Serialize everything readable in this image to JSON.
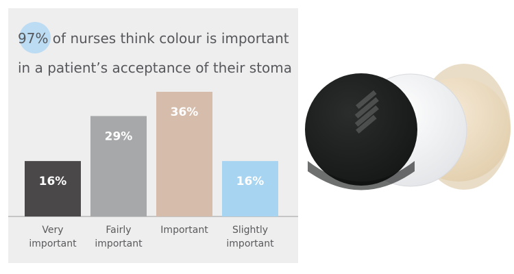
{
  "title": {
    "highlight": "97%",
    "line1_rest": " of nurses think colour is important",
    "line2": "in a patient’s acceptance of their stoma"
  },
  "colors": {
    "panel": "#efeeef",
    "highlight_circle": "#bcdcf3",
    "bars": [
      "#4b4849",
      "#a7a8a9",
      "#d6bcab",
      "#a6d4f1"
    ],
    "label_text": "#ffffff",
    "category_text": "#58595b"
  },
  "chart_data": {
    "type": "bar",
    "categories": [
      [
        "Very",
        "important"
      ],
      [
        "Fairly",
        "important"
      ],
      [
        "Important"
      ],
      [
        "Slightly",
        "important"
      ]
    ],
    "values": [
      16,
      29,
      36,
      16
    ],
    "data_labels": [
      "16%",
      "29%",
      "36%",
      "16%"
    ],
    "ylim": [
      0,
      36
    ],
    "grid": false
  },
  "photo": {
    "icon": "stoma-bag-colour-samples",
    "swatches": [
      "#1f2121",
      "#f5f6f7",
      "#eedfc7"
    ]
  }
}
